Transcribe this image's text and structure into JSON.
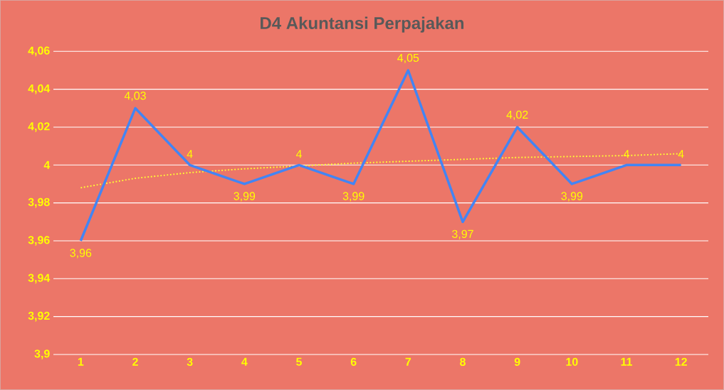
{
  "chart_data": {
    "type": "line",
    "title": "D4 Akuntansi Perpajakan",
    "categories": [
      "1",
      "2",
      "3",
      "4",
      "5",
      "6",
      "7",
      "8",
      "9",
      "10",
      "11",
      "12"
    ],
    "series": [
      {
        "color": "#4285f4",
        "values": [
          3.96,
          4.03,
          4,
          3.99,
          4,
          3.99,
          4.05,
          3.97,
          4.02,
          3.99,
          4,
          4
        ],
        "value_labels": [
          "3,96",
          "4,03",
          "4",
          "3,99",
          "4",
          "3,99",
          "4,05",
          "3,97",
          "4,02",
          "3,99",
          "4",
          "4"
        ]
      },
      {
        "type": "line",
        "line_style": "dotted",
        "color": "#ffff33",
        "values": [
          3.988,
          3.993,
          3.996,
          3.998,
          3.9995,
          4.001,
          4.002,
          4.003,
          4.004,
          4.0045,
          4.005,
          4.006
        ]
      }
    ],
    "ylim": [
      3.9,
      4.06
    ],
    "yticks": [
      {
        "value": 3.9,
        "label": "3,9"
      },
      {
        "value": 3.92,
        "label": "3,92"
      },
      {
        "value": 3.94,
        "label": "3,94"
      },
      {
        "value": 3.96,
        "label": "3,96"
      },
      {
        "value": 3.98,
        "label": "3,98"
      },
      4,
      {
        "value": 4.02,
        "label": "4,02"
      },
      {
        "value": 4.04,
        "label": "4,04"
      },
      {
        "value": 4.06,
        "label": "4,06"
      }
    ],
    "grid": "y"
  }
}
